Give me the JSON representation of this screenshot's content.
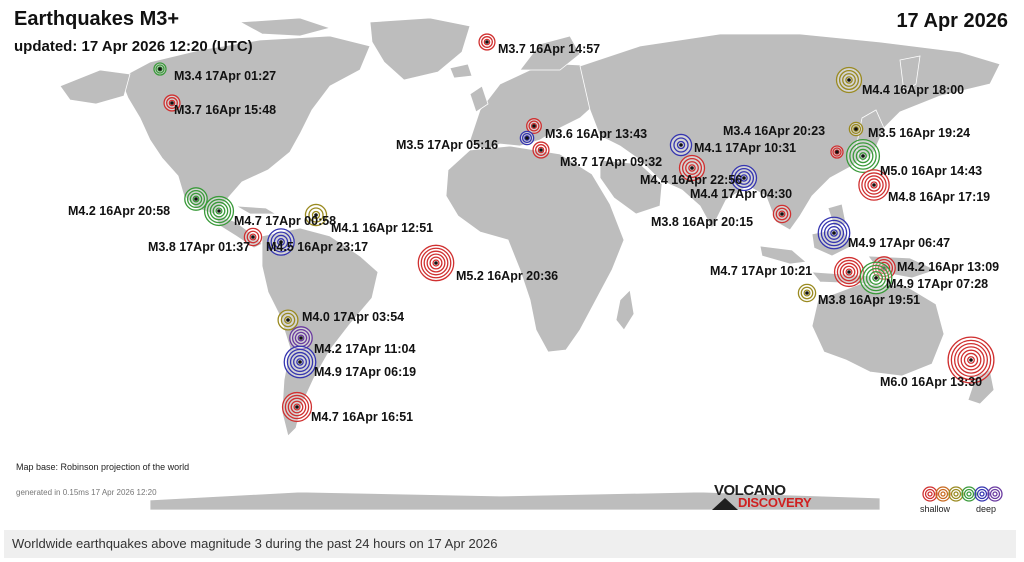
{
  "title": "Earthquakes M3+",
  "subtitle": "updated: 17 Apr 2026 12:20 (UTC)",
  "date": "17 Apr 2026",
  "map_base": "Map base: Robinson projection of the world",
  "generated": "generated in 0.15ms 17 Apr 2026 12:20",
  "brand": {
    "line1": "VOLCANO",
    "line2": "DISCOVERY"
  },
  "legend": {
    "shallow": "shallow",
    "deep": "deep",
    "depth_colors": [
      "#d03030",
      "#c86a20",
      "#9a8a20",
      "#3a9a3a",
      "#3535b0",
      "#6a3aa0"
    ]
  },
  "caption": "Worldwide earthquakes above magnitude 3 during the past 24 hours on 17 Apr 2026",
  "colors": {
    "ocean": "#ffffff",
    "land": "#bdbdbd",
    "red": "#d03030",
    "orange": "#c86a20",
    "olive": "#9a8a20",
    "green": "#3a9a3a",
    "blue": "#3535b0",
    "purple": "#6a3aa0"
  },
  "quakes": [
    {
      "label": "M3.4 17Apr 01:27",
      "mag": 3.4,
      "color": "green"
    },
    {
      "label": "M3.7 16Apr 15:48",
      "mag": 3.7,
      "color": "red"
    },
    {
      "label": "M3.7 16Apr 14:57",
      "mag": 3.7,
      "color": "red"
    },
    {
      "label": "M4.4 16Apr 18:00",
      "mag": 4.4,
      "color": "olive"
    },
    {
      "label": "M3.6 16Apr 13:43",
      "mag": 3.6,
      "color": "red"
    },
    {
      "label": "M3.5 17Apr 05:16",
      "mag": 3.5,
      "color": "blue"
    },
    {
      "label": "M3.7 17Apr 09:32",
      "mag": 3.7,
      "color": "red"
    },
    {
      "label": "M4.1 17Apr 10:31",
      "mag": 4.1,
      "color": "blue"
    },
    {
      "label": "M3.4 16Apr 20:23",
      "mag": 3.4,
      "color": "red"
    },
    {
      "label": "M3.5 16Apr 19:24",
      "mag": 3.5,
      "color": "olive"
    },
    {
      "label": "M5.0 16Apr 14:43",
      "mag": 5.0,
      "color": "green"
    },
    {
      "label": "M4.4 16Apr 22:56",
      "mag": 4.4,
      "color": "red"
    },
    {
      "label": "M4.4 17Apr 04:30",
      "mag": 4.4,
      "color": "blue"
    },
    {
      "label": "M4.8 16Apr 17:19",
      "mag": 4.8,
      "color": "red"
    },
    {
      "label": "M3.8 16Apr 20:15",
      "mag": 3.8,
      "color": "red"
    },
    {
      "label": "M4.9 17Apr 06:47",
      "mag": 4.9,
      "color": "blue"
    },
    {
      "label": "M4.2 16Apr 13:09",
      "mag": 4.2,
      "color": "red"
    },
    {
      "label": "M4.7 17Apr 10:21",
      "mag": 4.7,
      "color": "red"
    },
    {
      "label": "M4.9 17Apr 07:28",
      "mag": 4.9,
      "color": "green"
    },
    {
      "label": "M3.8 16Apr 19:51",
      "mag": 3.8,
      "color": "olive"
    },
    {
      "label": "M6.0 16Apr 13:30",
      "mag": 6.0,
      "color": "red"
    },
    {
      "label": "M4.2 16Apr 20:58",
      "mag": 4.2,
      "color": "green"
    },
    {
      "label": "M4.7 17Apr 00:58",
      "mag": 4.7,
      "color": "green"
    },
    {
      "label": "M4.1 16Apr 12:51",
      "mag": 4.1,
      "color": "olive"
    },
    {
      "label": "M3.8 17Apr 01:37",
      "mag": 3.8,
      "color": "red"
    },
    {
      "label": "M4.5 16Apr 23:17",
      "mag": 4.5,
      "color": "blue"
    },
    {
      "label": "M5.2 16Apr 20:36",
      "mag": 5.2,
      "color": "red"
    },
    {
      "label": "M4.0 17Apr 03:54",
      "mag": 4.0,
      "color": "olive"
    },
    {
      "label": "M4.2 17Apr 11:04",
      "mag": 4.2,
      "color": "purple"
    },
    {
      "label": "M4.9 17Apr 06:19",
      "mag": 4.9,
      "color": "blue"
    },
    {
      "label": "M4.7 16Apr 16:51",
      "mag": 4.7,
      "color": "red"
    }
  ]
}
